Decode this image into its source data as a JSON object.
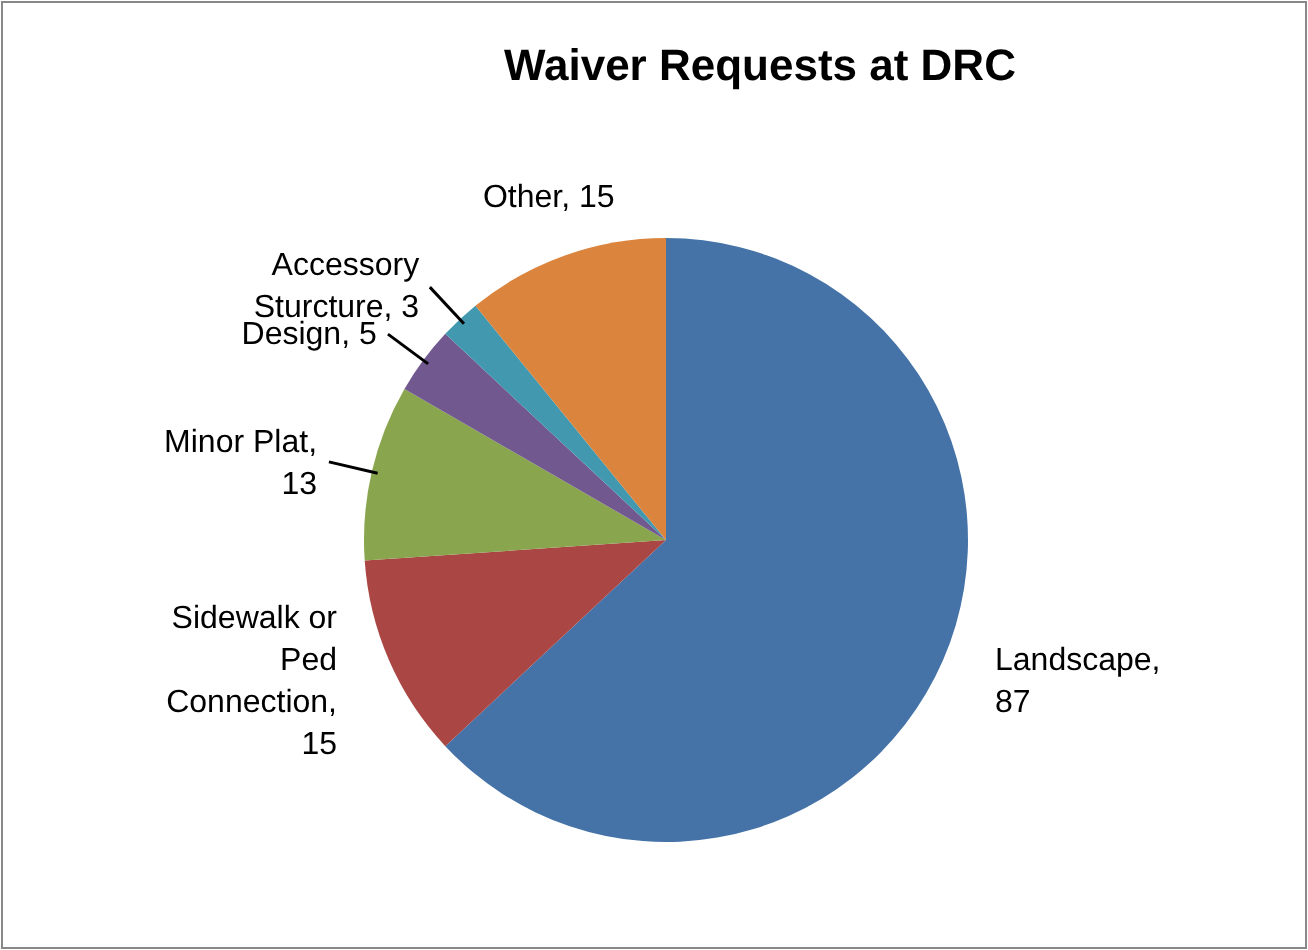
{
  "chart_data": {
    "type": "pie",
    "title": "Waiver Requests at DRC",
    "categories": [
      "Landscape",
      "Sidewalk or Ped Connection",
      "Minor Plat",
      "Design",
      "Accessory Sturcture",
      "Other"
    ],
    "values": [
      87,
      15,
      13,
      5,
      3,
      15
    ],
    "colors": [
      "#4572a7",
      "#aa4643",
      "#89a54e",
      "#71588f",
      "#4198af",
      "#db843d"
    ],
    "value_labels": [
      ", 87",
      ", 15",
      ", 13",
      ", 5",
      ", 3",
      ", 15"
    ]
  }
}
